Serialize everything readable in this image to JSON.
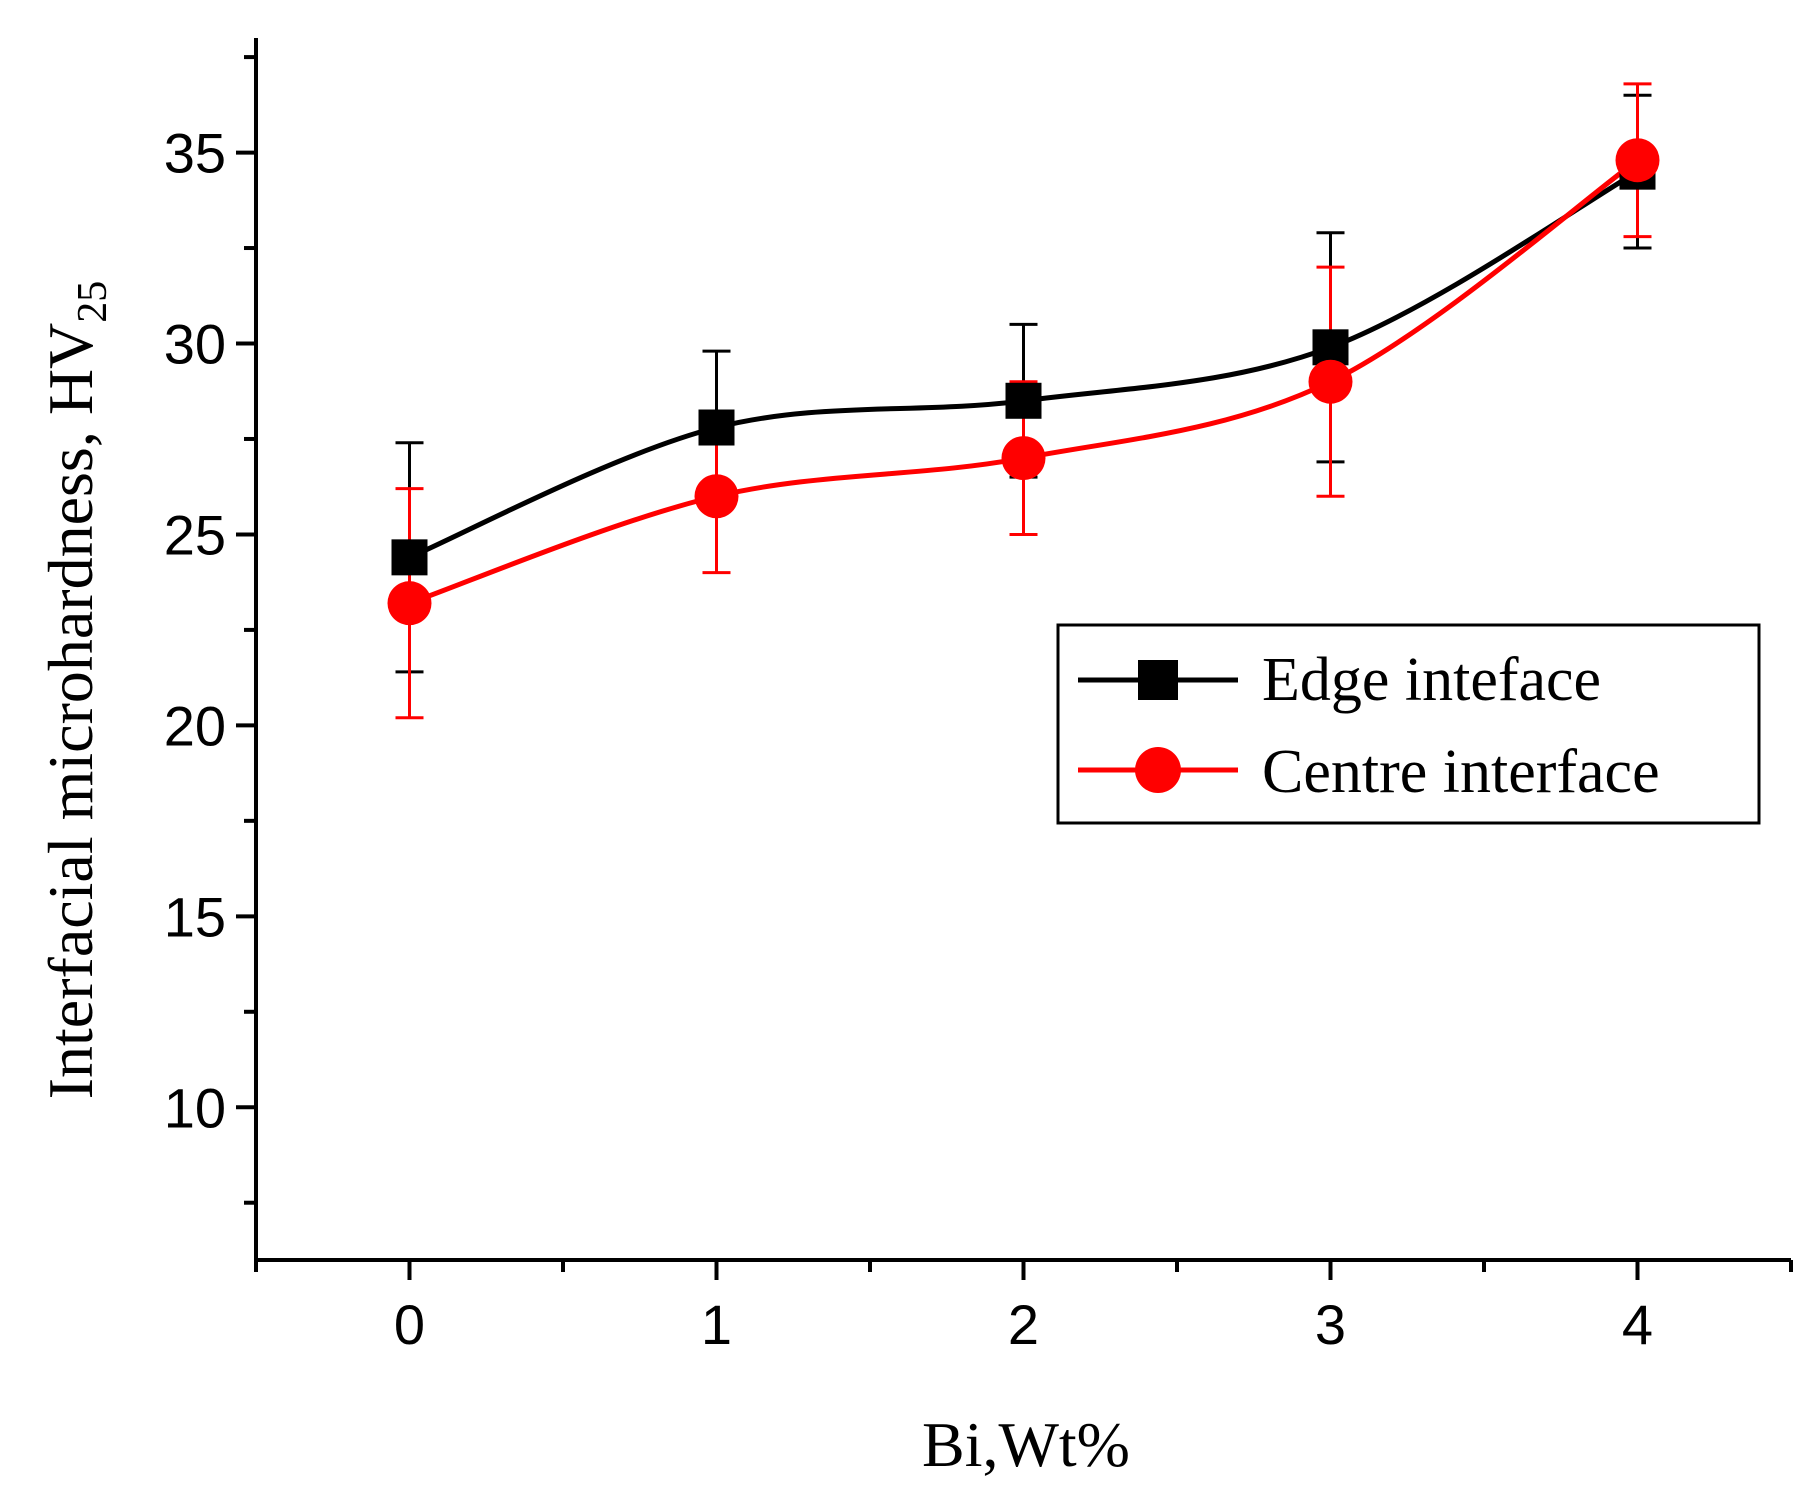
{
  "chart_data": {
    "type": "line",
    "title": "",
    "xlabel": "Bi,Wt%",
    "ylabel": "Interfacial microhardness, HV",
    "ylabel_subscript": "25",
    "xlim": [
      -0.5,
      4.5
    ],
    "ylim": [
      6.0,
      38.0
    ],
    "x_ticks": [
      0,
      1,
      2,
      3,
      4
    ],
    "x_tick_labels": [
      "0",
      "1",
      "2",
      "3",
      "4"
    ],
    "x_minor_ticks": [
      -0.5,
      0.5,
      1.5,
      2.5,
      3.5,
      4.5
    ],
    "y_ticks": [
      10,
      15,
      20,
      25,
      30,
      35
    ],
    "y_tick_labels": [
      "10",
      "15",
      "20",
      "25",
      "30",
      "35"
    ],
    "y_minor_ticks": [
      7.5,
      12.5,
      17.5,
      22.5,
      27.5,
      32.5,
      37.5
    ],
    "grid": false,
    "legend_position": "right-middle",
    "series": [
      {
        "name": "Edge inteface",
        "marker": "square",
        "color": "#000000",
        "x": [
          0,
          1,
          2,
          3,
          4
        ],
        "values": [
          24.4,
          27.8,
          28.5,
          29.9,
          34.5
        ],
        "errors": [
          3.0,
          2.0,
          2.0,
          3.0,
          2.0
        ]
      },
      {
        "name": "Centre interface",
        "marker": "circle",
        "color": "#ff0000",
        "x": [
          0,
          1,
          2,
          3,
          4
        ],
        "values": [
          23.2,
          26.0,
          27.0,
          29.0,
          34.8
        ],
        "errors": [
          3.0,
          2.0,
          2.0,
          3.0,
          2.0
        ]
      }
    ]
  }
}
